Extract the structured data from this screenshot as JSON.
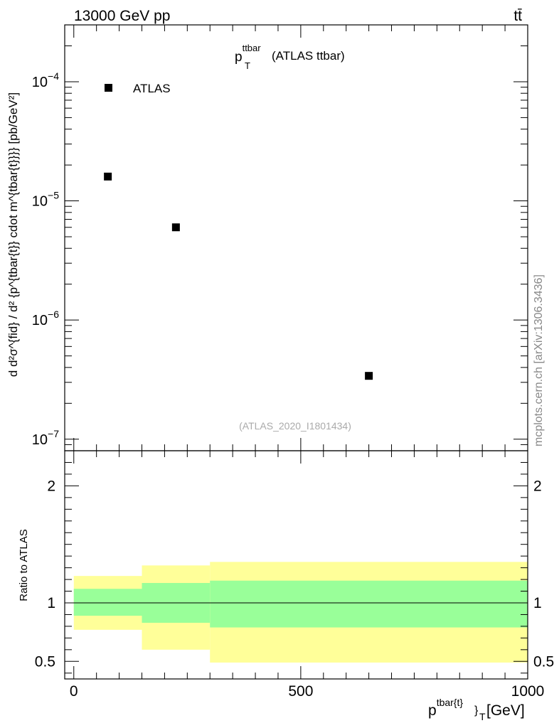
{
  "header": {
    "left_text": "13000 GeV pp",
    "right_text": "tt̄"
  },
  "side_label": "mcplots.cern.ch [arXiv:1306.3436]",
  "chart_data": [
    {
      "type": "scatter",
      "title_main": "p",
      "title_sup": "ttbar",
      "title_sub": "T",
      "title_rest": "(ATLAS ttbar)",
      "analysis_label": "(ATLAS_2020_I1801434)",
      "ylabel": "d d²σ^{fid} / d² {p^{tbar{t}} cdot m^{tbar{t}}}} [pb/GeV²]",
      "yscale": "log",
      "ylim": [
        8e-08,
        0.0003
      ],
      "xlim": [
        -20,
        1000
      ],
      "y_ticks": [
        {
          "value": 1e-07,
          "base": "10",
          "exp": "−7"
        },
        {
          "value": 1e-06,
          "base": "10",
          "exp": "−6"
        },
        {
          "value": 1e-05,
          "base": "10",
          "exp": "−5"
        },
        {
          "value": 0.0001,
          "base": "10",
          "exp": "−4"
        }
      ],
      "legend": {
        "entries": [
          "ATLAS"
        ],
        "placement": "top-left"
      },
      "series": [
        {
          "name": "ATLAS",
          "x": [
            75,
            225,
            650
          ],
          "y": [
            1.6e-05,
            6e-06,
            3.4e-07
          ],
          "marker": "square",
          "color": "#000000"
        }
      ]
    },
    {
      "type": "area",
      "ylabel": "Ratio to ATLAS",
      "ylim": [
        0.35,
        2.3
      ],
      "xlim": [
        -20,
        1000
      ],
      "y_ticks": [
        {
          "value": 0.5,
          "label": "0.5"
        },
        {
          "value": 1,
          "label": "1"
        },
        {
          "value": 2,
          "label": "2"
        }
      ],
      "x_ticks": [
        {
          "value": 0,
          "label": "0"
        },
        {
          "value": 500,
          "label": "500"
        },
        {
          "value": 1000,
          "label": "1000"
        }
      ],
      "xlabel_main": "p",
      "xlabel_sup": "tbar{t}",
      "xlabel_after": "}",
      "xlabel_sub": "T",
      "xlabel_unit": "[GeV]",
      "reference_line": 1,
      "bins": [
        {
          "x0": 0,
          "x1": 150,
          "inner": [
            0.89,
            1.12
          ],
          "outer": [
            0.77,
            1.23
          ]
        },
        {
          "x0": 150,
          "x1": 300,
          "inner": [
            0.83,
            1.17
          ],
          "outer": [
            0.6,
            1.32
          ]
        },
        {
          "x0": 300,
          "x1": 1000,
          "inner": [
            0.79,
            1.19
          ],
          "outer": [
            0.49,
            1.35
          ]
        }
      ],
      "colors": {
        "inner": "#99ff99",
        "outer": "#ffff99"
      }
    }
  ]
}
